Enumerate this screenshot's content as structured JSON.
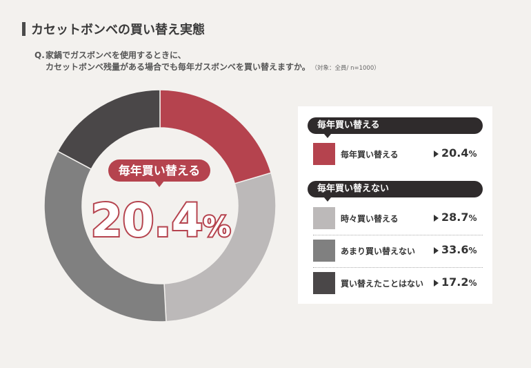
{
  "page": {
    "title": "カセットボンベの買い替え実態",
    "question_mark": "Q.",
    "question_line1": "家鍋でガスボンベを使用するときに、",
    "question_line2": "カセットボンベ残量がある場合でも毎年ガスボンベを買い替えますか。",
    "question_target": "（対象：全員/ n=1000）"
  },
  "chart_data": {
    "type": "pie",
    "style": "donut",
    "unit": "%",
    "categories": [
      "毎年買い替える",
      "時々買い替える",
      "あまり買い替えない",
      "買い替えたことはない"
    ],
    "values": [
      20.4,
      28.7,
      33.6,
      17.2
    ],
    "colors": [
      "#b5434e",
      "#bcb9b9",
      "#808080",
      "#4a4748"
    ],
    "center_callout_label": "毎年買い替える",
    "center_value": "20.4",
    "center_unit": "%",
    "legend_groups": [
      {
        "title": "毎年買い替える",
        "items": [
          0
        ]
      },
      {
        "title": "毎年買い替えない",
        "items": [
          1,
          2,
          3
        ]
      }
    ]
  }
}
